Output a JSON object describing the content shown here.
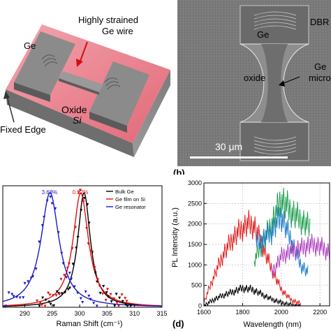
{
  "panel_a": {
    "labels": {
      "ge": "Ge",
      "strained": "Highly strained",
      "wire": "Ge wire",
      "oxide": "Oxide",
      "si": "Si",
      "fixed_edge": "Fixed Edge"
    }
  },
  "panel_b": {
    "letter": "(b)",
    "labels": {
      "ge": "Ge",
      "dbr": "DBR",
      "oxide": "oxide",
      "ge2": "Ge",
      "micro": "micro",
      "scale": "30 μm"
    }
  },
  "panel_c": {
    "percent_labels": [
      "3.68%",
      "0.22%"
    ],
    "x_ticks": [
      "290",
      "295",
      "300",
      "305",
      "310",
      "315"
    ],
    "xlabel": "Raman Shift (cm⁻¹)",
    "legend": [
      "Bulk Ge",
      "Ge film on Si",
      "Ge resonator"
    ],
    "colors": {
      "bulk": "#000000",
      "film": "#e01010",
      "resonator": "#1a1acc"
    }
  },
  "panel_d": {
    "letter": "(d)",
    "y_ticks": [
      "3000",
      "2500",
      "2000",
      "1500",
      "1000",
      "500",
      "0"
    ],
    "x_ticks": [
      "1600",
      "1800",
      "2000",
      "2200"
    ],
    "ylabel": "PL Intensity (a.u.)",
    "xlabel": "Wavelength (nm)"
  },
  "chart_data": [
    {
      "type": "line",
      "panel": "c",
      "xlabel": "Raman Shift (cm⁻¹)",
      "xlim": [
        286,
        315
      ],
      "x_ticks": [
        290,
        295,
        300,
        305,
        310,
        315
      ],
      "series": [
        {
          "name": "Bulk Ge",
          "color": "#000000",
          "peak": 300.8,
          "width": 1.4,
          "amplitude": 1.0
        },
        {
          "name": "Ge film on Si",
          "color": "#e01010",
          "peak": 300.2,
          "width": 1.7,
          "amplitude": 1.0
        },
        {
          "name": "Ge resonator",
          "color": "#1a1acc",
          "peak": 294.6,
          "width": 2.0,
          "amplitude": 1.0
        }
      ],
      "annotations": [
        {
          "text": "3.68%",
          "x": 294.6
        },
        {
          "text": "0.22%",
          "x": 300.2
        }
      ]
    },
    {
      "type": "line",
      "panel": "d",
      "xlabel": "Wavelength (nm)",
      "ylabel": "PL Intensity (a.u.)",
      "xlim": [
        1600,
        2250
      ],
      "ylim": [
        0,
        3000
      ],
      "x_ticks": [
        1600,
        1800,
        2000,
        2200
      ],
      "y_ticks": [
        0,
        500,
        1000,
        1500,
        2000,
        2500,
        3000
      ],
      "grid": true,
      "series": [
        {
          "color": "#000000",
          "x": [
            1600,
            1650,
            1700,
            1750,
            1800,
            1850,
            1900,
            1950,
            2000,
            2050,
            2100
          ],
          "y": [
            0,
            150,
            260,
            340,
            430,
            400,
            280,
            160,
            80,
            30,
            10
          ]
        },
        {
          "color": "#e02020",
          "x": [
            1600,
            1650,
            1700,
            1750,
            1800,
            1830,
            1860,
            1900,
            1950,
            2000,
            2050,
            2100
          ],
          "y": [
            80,
            700,
            1250,
            1650,
            1900,
            2000,
            1950,
            1500,
            900,
            400,
            150,
            50
          ]
        },
        {
          "color": "#20a050",
          "x": [
            1860,
            1900,
            1950,
            2000,
            2050,
            2100,
            2150
          ],
          "y": [
            1100,
            1500,
            2000,
            2600,
            2300,
            2100,
            1900
          ]
        },
        {
          "color": "#2080cc",
          "x": [
            1870,
            1900,
            1950,
            2000,
            2050,
            2100,
            2140
          ],
          "y": [
            1500,
            1600,
            1800,
            2200,
            1600,
            1000,
            800
          ]
        },
        {
          "color": "#b040c0",
          "x": [
            1950,
            2000,
            2050,
            2100,
            2150,
            2200,
            2250
          ],
          "y": [
            800,
            1200,
            1350,
            1400,
            1500,
            1450,
            1300
          ]
        }
      ]
    }
  ]
}
